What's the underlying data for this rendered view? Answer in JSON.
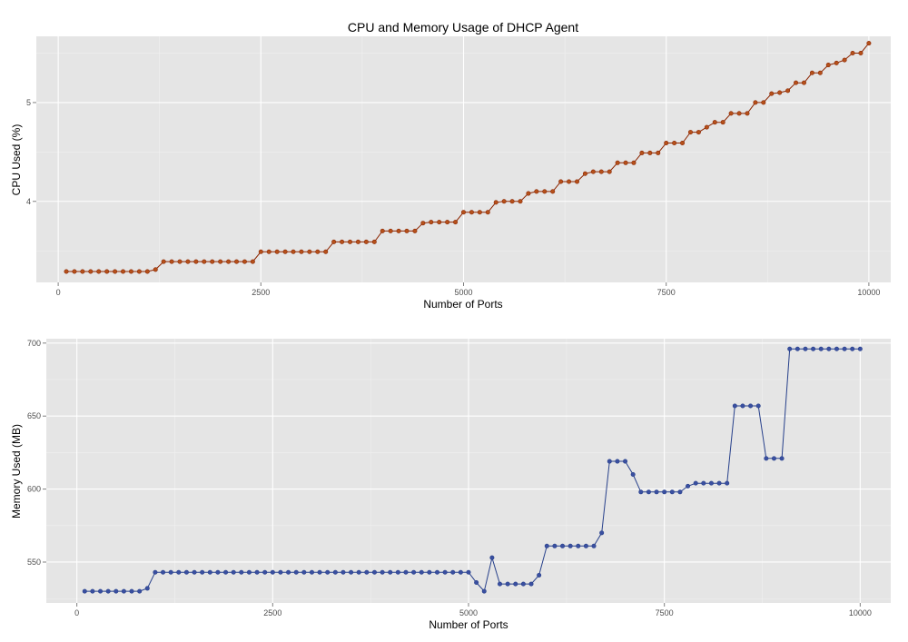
{
  "figure_title": "CPU and Memory Usage of DHCP Agent",
  "colors": {
    "cpu_line": "#8b2500",
    "cpu_point": "#b5501a",
    "mem_line": "#27408b",
    "mem_point": "#3a4fa0",
    "panel_bg": "#e5e5e5",
    "grid": "#ffffff"
  },
  "chart_data": [
    {
      "type": "line",
      "title": "CPU and Memory Usage of DHCP Agent",
      "xlabel": "Number of Ports",
      "ylabel": "CPU Used (%)",
      "xlim": [
        -270,
        10270
      ],
      "ylim": [
        3.18,
        5.67
      ],
      "x_ticks": [
        0,
        2500,
        5000,
        7500,
        10000
      ],
      "x_tick_labels": [
        "0",
        "2500",
        "5000",
        "7500",
        "10000"
      ],
      "y_ticks": [
        4,
        5
      ],
      "y_tick_labels": [
        "4",
        "5"
      ],
      "grid": true,
      "series": [
        {
          "x": [
            100,
            200,
            300,
            400,
            500,
            600,
            700,
            800,
            900,
            1000,
            1100,
            1200,
            1300,
            1400,
            1500,
            1600,
            1700,
            1800,
            1900,
            2000,
            2100,
            2200,
            2300,
            2400,
            2500,
            2600,
            2700,
            2800,
            2900,
            3000,
            3100,
            3200,
            3300,
            3400,
            3500,
            3600,
            3700,
            3800,
            3900,
            4000,
            4100,
            4200,
            4300,
            4400,
            4500,
            4600,
            4700,
            4800,
            4900,
            5000,
            5100,
            5200,
            5300,
            5400,
            5500,
            5600,
            5700,
            5800,
            5900,
            6000,
            6100,
            6200,
            6300,
            6400,
            6500,
            6600,
            6700,
            6800,
            6900,
            7000,
            7100,
            7200,
            7300,
            7400,
            7500,
            7600,
            7700,
            7800,
            7900,
            8000,
            8100,
            8200,
            8300,
            8400,
            8500,
            8600,
            8700,
            8800,
            8900,
            9000,
            9100,
            9200,
            9300,
            9400,
            9500,
            9600,
            9700,
            9800,
            9900,
            10000
          ],
          "values": [
            3.29,
            3.29,
            3.29,
            3.29,
            3.29,
            3.29,
            3.29,
            3.29,
            3.29,
            3.29,
            3.29,
            3.31,
            3.39,
            3.39,
            3.39,
            3.39,
            3.39,
            3.39,
            3.39,
            3.39,
            3.39,
            3.39,
            3.39,
            3.39,
            3.49,
            3.49,
            3.49,
            3.49,
            3.49,
            3.49,
            3.49,
            3.49,
            3.49,
            3.59,
            3.59,
            3.59,
            3.59,
            3.59,
            3.59,
            3.7,
            3.7,
            3.7,
            3.7,
            3.7,
            3.78,
            3.79,
            3.79,
            3.79,
            3.79,
            3.89,
            3.89,
            3.89,
            3.89,
            3.99,
            4.0,
            4.0,
            4.0,
            4.08,
            4.1,
            4.1,
            4.1,
            4.2,
            4.2,
            4.2,
            4.28,
            4.3,
            4.3,
            4.3,
            4.39,
            4.39,
            4.39,
            4.49,
            4.49,
            4.49,
            4.59,
            4.59,
            4.59,
            4.7,
            4.7,
            4.75,
            4.8,
            4.8,
            4.89,
            4.89,
            4.89,
            5.0,
            5.0,
            5.09,
            5.1,
            5.12,
            5.2,
            5.2,
            5.3,
            5.3,
            5.38,
            5.4,
            5.43,
            5.5,
            5.5,
            5.6
          ]
        }
      ]
    },
    {
      "type": "line",
      "xlabel": "Number of Ports",
      "ylabel": "Memory Used (MB)",
      "xlim": [
        -390,
        10390
      ],
      "ylim": [
        522,
        703
      ],
      "x_ticks": [
        0,
        2500,
        5000,
        7500,
        10000
      ],
      "x_tick_labels": [
        "0",
        "2500",
        "5000",
        "7500",
        "10000"
      ],
      "y_ticks": [
        550,
        600,
        650,
        700
      ],
      "y_tick_labels": [
        "550",
        "600",
        "650",
        "700"
      ],
      "grid": true,
      "series": [
        {
          "x": [
            100,
            200,
            300,
            400,
            500,
            600,
            700,
            800,
            900,
            1000,
            1100,
            1200,
            1300,
            1400,
            1500,
            1600,
            1700,
            1800,
            1900,
            2000,
            2100,
            2200,
            2300,
            2400,
            2500,
            2600,
            2700,
            2800,
            2900,
            3000,
            3100,
            3200,
            3300,
            3400,
            3500,
            3600,
            3700,
            3800,
            3900,
            4000,
            4100,
            4200,
            4300,
            4400,
            4500,
            4600,
            4700,
            4800,
            4900,
            5000,
            5100,
            5200,
            5300,
            5400,
            5500,
            5600,
            5700,
            5800,
            5900,
            6000,
            6100,
            6200,
            6300,
            6400,
            6500,
            6600,
            6700,
            6800,
            6900,
            7000,
            7100,
            7200,
            7300,
            7400,
            7500,
            7600,
            7700,
            7800,
            7900,
            8000,
            8100,
            8200,
            8300,
            8400,
            8500,
            8600,
            8700,
            8800,
            8900,
            9000,
            9100,
            9200,
            9300,
            9400,
            9500,
            9600,
            9700,
            9800,
            9900,
            10000
          ],
          "values": [
            530,
            530,
            530,
            530,
            530,
            530,
            530,
            530,
            532,
            543,
            543,
            543,
            543,
            543,
            543,
            543,
            543,
            543,
            543,
            543,
            543,
            543,
            543,
            543,
            543,
            543,
            543,
            543,
            543,
            543,
            543,
            543,
            543,
            543,
            543,
            543,
            543,
            543,
            543,
            543,
            543,
            543,
            543,
            543,
            543,
            543,
            543,
            543,
            543,
            543,
            536,
            530,
            553,
            535,
            535,
            535,
            535,
            535,
            541,
            561,
            561,
            561,
            561,
            561,
            561,
            561,
            570,
            619,
            619,
            619,
            610,
            598,
            598,
            598,
            598,
            598,
            598,
            602,
            604,
            604,
            604,
            604,
            604,
            657,
            657,
            657,
            657,
            621,
            621,
            621,
            696,
            696,
            696,
            696,
            696,
            696,
            696,
            696,
            696,
            696
          ]
        }
      ]
    }
  ]
}
